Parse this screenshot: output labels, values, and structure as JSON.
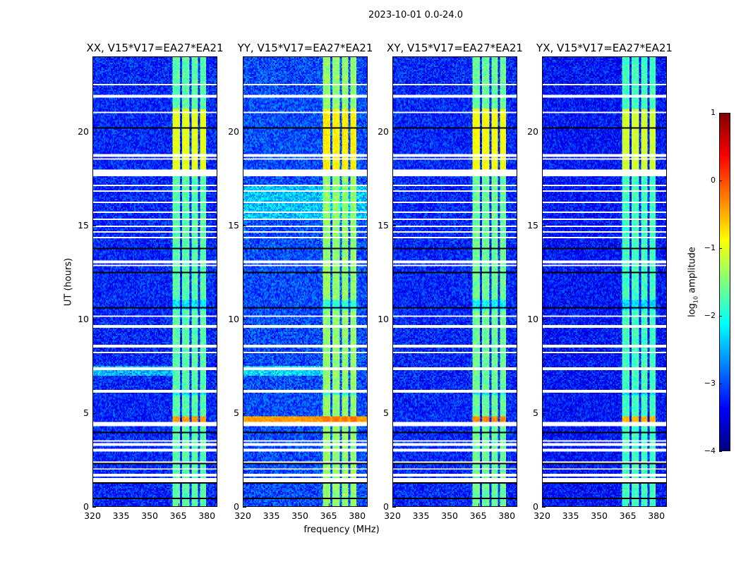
{
  "figure_title": "2023-10-01 0.0-24.0",
  "chart_data": {
    "type": "heatmap",
    "title": "2023-10-01 0.0-24.0",
    "xlabel": "frequency (MHz)",
    "ylabel": "UT (hours)",
    "xlim": [
      320,
      385.5
    ],
    "ylim": [
      0,
      24
    ],
    "xticks": [
      320,
      335,
      350,
      365,
      380
    ],
    "yticks": [
      0,
      5,
      10,
      15,
      20
    ],
    "colorbar": {
      "label": "log10 amplitude",
      "label_main": "log",
      "label_sub": "10",
      "label_rest": " amplitude",
      "range": [
        -4,
        1
      ],
      "ticks": [
        "1",
        "0",
        "−1",
        "−2",
        "−3",
        "−4"
      ],
      "colormap": "jet"
    },
    "panels": [
      {
        "title": "XX, V15*V17=EA27*EA21",
        "background": -3.2,
        "band_level": -1.7,
        "bright_level": -1.0,
        "spike_level": -0.4,
        "broadband_rfi": false
      },
      {
        "title": "YY, V15*V17=EA27*EA21",
        "background": -3.0,
        "band_level": -1.4,
        "bright_level": -0.8,
        "spike_level": -0.2,
        "broadband_rfi": true
      },
      {
        "title": "XY, V15*V17=EA27*EA21",
        "background": -3.2,
        "band_level": -1.6,
        "bright_level": -0.9,
        "spike_level": -0.3,
        "broadband_rfi": false
      },
      {
        "title": "YX, V15*V17=EA27*EA21",
        "background": -3.3,
        "band_level": -1.8,
        "bright_level": -1.1,
        "spike_level": -0.5,
        "broadband_rfi": false
      }
    ],
    "rfi_bands_mhz": [
      [
        362,
        366
      ],
      [
        367,
        371
      ],
      [
        372,
        375.5
      ],
      [
        376.5,
        380
      ]
    ],
    "bright_period_hours": [
      17.9,
      21.2
    ],
    "flagged_hours": [
      [
        22.5,
        22.6
      ],
      [
        21.85,
        21.95
      ],
      [
        21.0,
        21.1
      ],
      [
        18.7,
        18.85
      ],
      [
        18.5,
        18.6
      ],
      [
        17.6,
        18.0
      ],
      [
        17.1,
        17.2
      ],
      [
        16.8,
        16.9
      ],
      [
        16.2,
        16.3
      ],
      [
        15.65,
        15.75
      ],
      [
        15.3,
        15.4
      ],
      [
        14.9,
        15.0
      ],
      [
        14.6,
        14.7
      ],
      [
        14.3,
        14.4
      ],
      [
        13.0,
        13.1
      ],
      [
        12.8,
        12.9
      ],
      [
        11.0,
        11.05
      ],
      [
        10.1,
        10.2
      ],
      [
        9.5,
        9.65
      ],
      [
        8.5,
        8.6
      ],
      [
        8.15,
        8.25
      ],
      [
        7.3,
        7.4
      ],
      [
        6.5,
        6.55
      ],
      [
        6.1,
        6.2
      ],
      [
        5.3,
        5.35
      ],
      [
        4.25,
        4.5
      ],
      [
        3.45,
        3.55
      ],
      [
        3.25,
        3.35
      ],
      [
        2.95,
        3.05
      ],
      [
        2.3,
        2.4
      ],
      [
        1.95,
        2.05
      ],
      [
        1.6,
        1.7
      ],
      [
        1.3,
        1.5
      ],
      [
        0.95,
        1.0
      ]
    ],
    "gap_hours": [
      [
        20.15,
        20.22
      ],
      [
        13.7,
        13.78
      ],
      [
        12.95,
        13.0
      ],
      [
        12.45,
        12.5
      ],
      [
        12.2,
        12.25
      ],
      [
        11.9,
        11.95
      ],
      [
        11.6,
        11.65
      ],
      [
        11.3,
        11.35
      ],
      [
        10.85,
        10.9
      ],
      [
        10.6,
        10.65
      ],
      [
        6.8,
        6.85
      ],
      [
        6.2,
        6.25
      ],
      [
        3.9,
        3.95
      ],
      [
        2.25,
        2.3
      ],
      [
        1.2,
        1.25
      ],
      [
        0.35,
        0.45
      ]
    ]
  }
}
